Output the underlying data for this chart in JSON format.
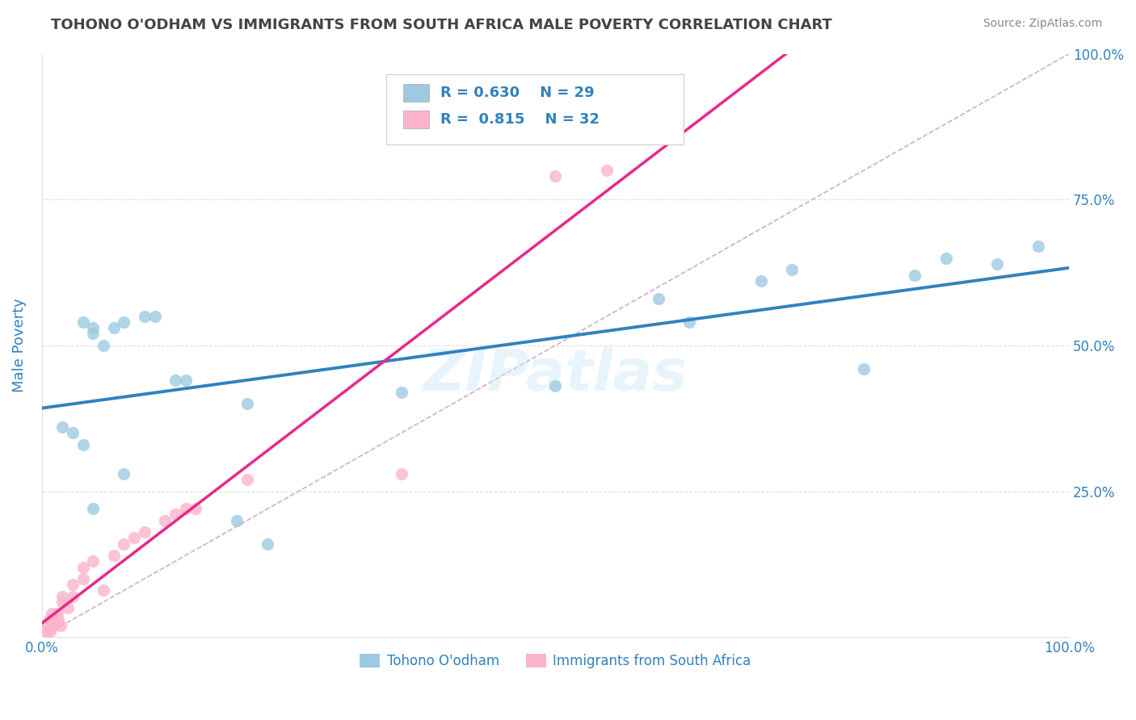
{
  "title": "TOHONO O'ODHAM VS IMMIGRANTS FROM SOUTH AFRICA MALE POVERTY CORRELATION CHART",
  "source": "Source: ZipAtlas.com",
  "ylabel": "Male Poverty",
  "watermark": "ZIPatlas",
  "blue_label": "Tohono O'odham",
  "pink_label": "Immigrants from South Africa",
  "blue_R": "0.630",
  "blue_N": "29",
  "pink_R": "0.815",
  "pink_N": "32",
  "blue_color": "#9ecae1",
  "pink_color": "#fbb4c9",
  "blue_line_color": "#3182bd",
  "pink_line_color": "#e7298a",
  "diag_line_color": "#d0aec8",
  "legend_text_color": "#3182bd",
  "blue_points_x": [
    0.02,
    0.03,
    0.04,
    0.05,
    0.05,
    0.06,
    0.07,
    0.08,
    0.1,
    0.11,
    0.13,
    0.14,
    0.22,
    0.35,
    0.5,
    0.6,
    0.63,
    0.7,
    0.73,
    0.8,
    0.85,
    0.88,
    0.93,
    0.97,
    0.04,
    0.05,
    0.08,
    0.19,
    0.2
  ],
  "blue_points_y": [
    0.36,
    0.35,
    0.54,
    0.53,
    0.52,
    0.5,
    0.53,
    0.54,
    0.55,
    0.55,
    0.44,
    0.44,
    0.16,
    0.42,
    0.43,
    0.58,
    0.54,
    0.61,
    0.63,
    0.46,
    0.62,
    0.65,
    0.64,
    0.67,
    0.33,
    0.22,
    0.28,
    0.2,
    0.4
  ],
  "pink_points_x": [
    0.005,
    0.006,
    0.007,
    0.008,
    0.009,
    0.01,
    0.01,
    0.012,
    0.015,
    0.016,
    0.018,
    0.02,
    0.02,
    0.025,
    0.03,
    0.03,
    0.04,
    0.04,
    0.05,
    0.06,
    0.07,
    0.08,
    0.09,
    0.1,
    0.12,
    0.13,
    0.14,
    0.15,
    0.2,
    0.35,
    0.5,
    0.55
  ],
  "pink_points_y": [
    0.01,
    0.02,
    0.03,
    0.01,
    0.02,
    0.03,
    0.04,
    0.02,
    0.04,
    0.03,
    0.02,
    0.07,
    0.06,
    0.05,
    0.07,
    0.09,
    0.1,
    0.12,
    0.13,
    0.08,
    0.14,
    0.16,
    0.17,
    0.18,
    0.2,
    0.21,
    0.22,
    0.22,
    0.27,
    0.28,
    0.79,
    0.8
  ],
  "background_color": "#ffffff",
  "grid_color": "#e0e0e0",
  "title_color": "#444444",
  "axis_label_color": "#3182bd",
  "tick_color": "#3182bd"
}
